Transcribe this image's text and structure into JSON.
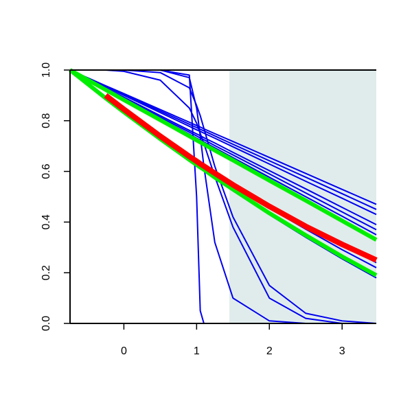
{
  "chart_data": {
    "type": "line",
    "x": [
      -0.74,
      -0.25,
      0,
      0.5,
      0.9,
      1,
      1.05,
      1.1,
      1.25,
      1.5,
      2,
      2.5,
      3,
      3.47
    ],
    "xlim": [
      -0.74,
      3.47
    ],
    "ylim": [
      0,
      1
    ],
    "xticks": [
      0,
      1,
      2,
      3
    ],
    "yticks": [
      {
        "value": 0,
        "label": "0.0"
      },
      {
        "value": 0.2,
        "label": "0.2"
      },
      {
        "value": 0.4,
        "label": "0.4"
      },
      {
        "value": 0.6,
        "label": "0.6"
      },
      {
        "value": 0.8,
        "label": "0.8"
      },
      {
        "value": 1,
        "label": "1.0"
      }
    ],
    "hline": 1,
    "shaded_xmin": 1.45,
    "shade_color": "#e0ecec",
    "series": [
      {
        "color": "#0000ee",
        "width": 2,
        "values": [
          1,
          0.938,
          0.907,
          0.844,
          0.794,
          0.781,
          0.775,
          0.768,
          0.749,
          0.718,
          0.655,
          0.592,
          0.529,
          0.47
        ]
      },
      {
        "color": "#0000ee",
        "width": 2,
        "values": [
          1,
          0.936,
          0.903,
          0.838,
          0.786,
          0.773,
          0.766,
          0.76,
          0.74,
          0.707,
          0.642,
          0.577,
          0.512,
          0.45
        ]
      },
      {
        "color": "#0000ee",
        "width": 2,
        "values": [
          1,
          0.934,
          0.9,
          0.832,
          0.778,
          0.764,
          0.758,
          0.751,
          0.731,
          0.697,
          0.629,
          0.561,
          0.494,
          0.43
        ]
      },
      {
        "color": "#0000ee",
        "width": 2,
        "values": [
          1,
          0.929,
          0.893,
          0.82,
          0.762,
          0.748,
          0.741,
          0.733,
          0.712,
          0.675,
          0.603,
          0.531,
          0.458,
          0.39
        ]
      },
      {
        "color": "#0000ee",
        "width": 2,
        "values": [
          1,
          0.927,
          0.889,
          0.814,
          0.755,
          0.74,
          0.732,
          0.725,
          0.702,
          0.665,
          0.59,
          0.515,
          0.44,
          0.37
        ]
      },
      {
        "color": "#0000ee",
        "width": 2,
        "values": [
          1,
          0.924,
          0.886,
          0.809,
          0.747,
          0.731,
          0.724,
          0.716,
          0.693,
          0.654,
          0.577,
          0.5,
          0.423,
          0.35
        ]
      },
      {
        "color": "#0000ee",
        "width": 2,
        "values": [
          1,
          0.895,
          0.843,
          0.743,
          0.666,
          0.647,
          0.637,
          0.628,
          0.6,
          0.555,
          0.468,
          0.387,
          0.309,
          0.24
        ]
      },
      {
        "color": "#0000ee",
        "width": 2,
        "values": [
          1,
          0.892,
          0.84,
          0.737,
          0.658,
          0.638,
          0.629,
          0.62,
          0.591,
          0.545,
          0.455,
          0.372,
          0.291,
          0.22
        ]
      },
      {
        "color": "#0000ee",
        "width": 2,
        "values": [
          1,
          0.888,
          0.832,
          0.725,
          0.642,
          0.622,
          0.611,
          0.602,
          0.571,
          0.523,
          0.429,
          0.34,
          0.255,
          0.18
        ]
      },
      {
        "color": "#0000ee",
        "width": 2,
        "values": [
          1,
          1,
          1,
          1,
          0.98,
          0.5,
          0.05,
          0,
          0,
          0,
          0,
          0,
          0,
          0
        ]
      },
      {
        "color": "#0000ee",
        "width": 2,
        "values": [
          1,
          1,
          1,
          1,
          0.97,
          0.85,
          0.74,
          0.62,
          0.32,
          0.1,
          0.01,
          0,
          0,
          0
        ]
      },
      {
        "color": "#0000ee",
        "width": 2,
        "values": [
          1,
          1,
          1,
          0.99,
          0.93,
          0.86,
          0.82,
          0.77,
          0.62,
          0.42,
          0.15,
          0.04,
          0.01,
          0
        ]
      },
      {
        "color": "#0000ee",
        "width": 2,
        "values": [
          1,
          1,
          0.995,
          0.96,
          0.85,
          0.79,
          0.75,
          0.71,
          0.58,
          0.38,
          0.1,
          0.02,
          0,
          0
        ]
      },
      {
        "color": "#00ee00",
        "width": 6,
        "values": [
          1,
          0.922,
          0.882,
          0.803,
          0.739,
          0.723,
          0.715,
          0.707,
          0.683,
          0.644,
          0.564,
          0.485,
          0.405,
          0.33
        ]
      },
      {
        "color": "#00ee00",
        "width": 6,
        "values": [
          1,
          0.889,
          0.834,
          0.728,
          0.646,
          0.626,
          0.616,
          0.607,
          0.576,
          0.529,
          0.435,
          0.348,
          0.264,
          0.19
        ]
      },
      {
        "color": "#ff0000",
        "width": 8,
        "values": [
          null,
          0.9,
          0.845,
          0.739,
          0.659,
          0.64,
          0.63,
          0.621,
          0.593,
          0.547,
          0.462,
          0.383,
          0.312,
          0.25
        ]
      }
    ]
  }
}
